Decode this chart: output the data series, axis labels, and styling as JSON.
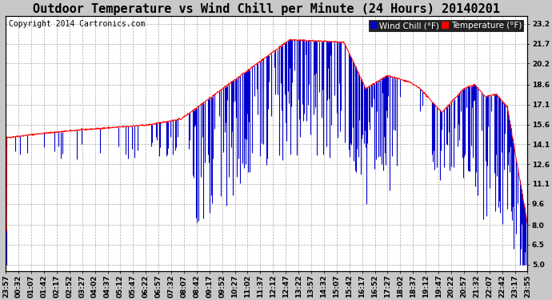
{
  "title": "Outdoor Temperature vs Wind Chill per Minute (24 Hours) 20140201",
  "copyright": "Copyright 2014 Cartronics.com",
  "legend_labels": [
    "Wind Chill (°F)",
    "Temperature (°F)"
  ],
  "legend_colors": [
    "#0000cc",
    "#ff0000"
  ],
  "wind_chill_color": "#0000cc",
  "temperature_color": "#ff0000",
  "fig_bg_color": "#c8c8c8",
  "plot_bg_color": "#ffffff",
  "yticks": [
    5.0,
    6.5,
    8.0,
    9.6,
    11.1,
    12.6,
    14.1,
    15.6,
    17.1,
    18.6,
    20.2,
    21.7,
    23.2
  ],
  "ymin": 4.5,
  "ymax": 23.8,
  "title_fontsize": 11,
  "copyright_fontsize": 7,
  "tick_fontsize": 6.5,
  "legend_fontsize": 7.5,
  "xtick_labels": [
    "23:57",
    "00:32",
    "01:07",
    "01:42",
    "02:17",
    "02:52",
    "03:27",
    "04:02",
    "04:37",
    "05:12",
    "05:47",
    "06:22",
    "06:57",
    "07:32",
    "08:07",
    "08:42",
    "09:17",
    "09:52",
    "10:27",
    "11:02",
    "11:37",
    "12:12",
    "12:47",
    "13:22",
    "13:57",
    "14:32",
    "15:07",
    "15:42",
    "16:17",
    "16:52",
    "17:27",
    "18:02",
    "18:37",
    "19:12",
    "19:47",
    "20:22",
    "20:57",
    "21:32",
    "22:07",
    "22:42",
    "23:17",
    "23:55"
  ]
}
